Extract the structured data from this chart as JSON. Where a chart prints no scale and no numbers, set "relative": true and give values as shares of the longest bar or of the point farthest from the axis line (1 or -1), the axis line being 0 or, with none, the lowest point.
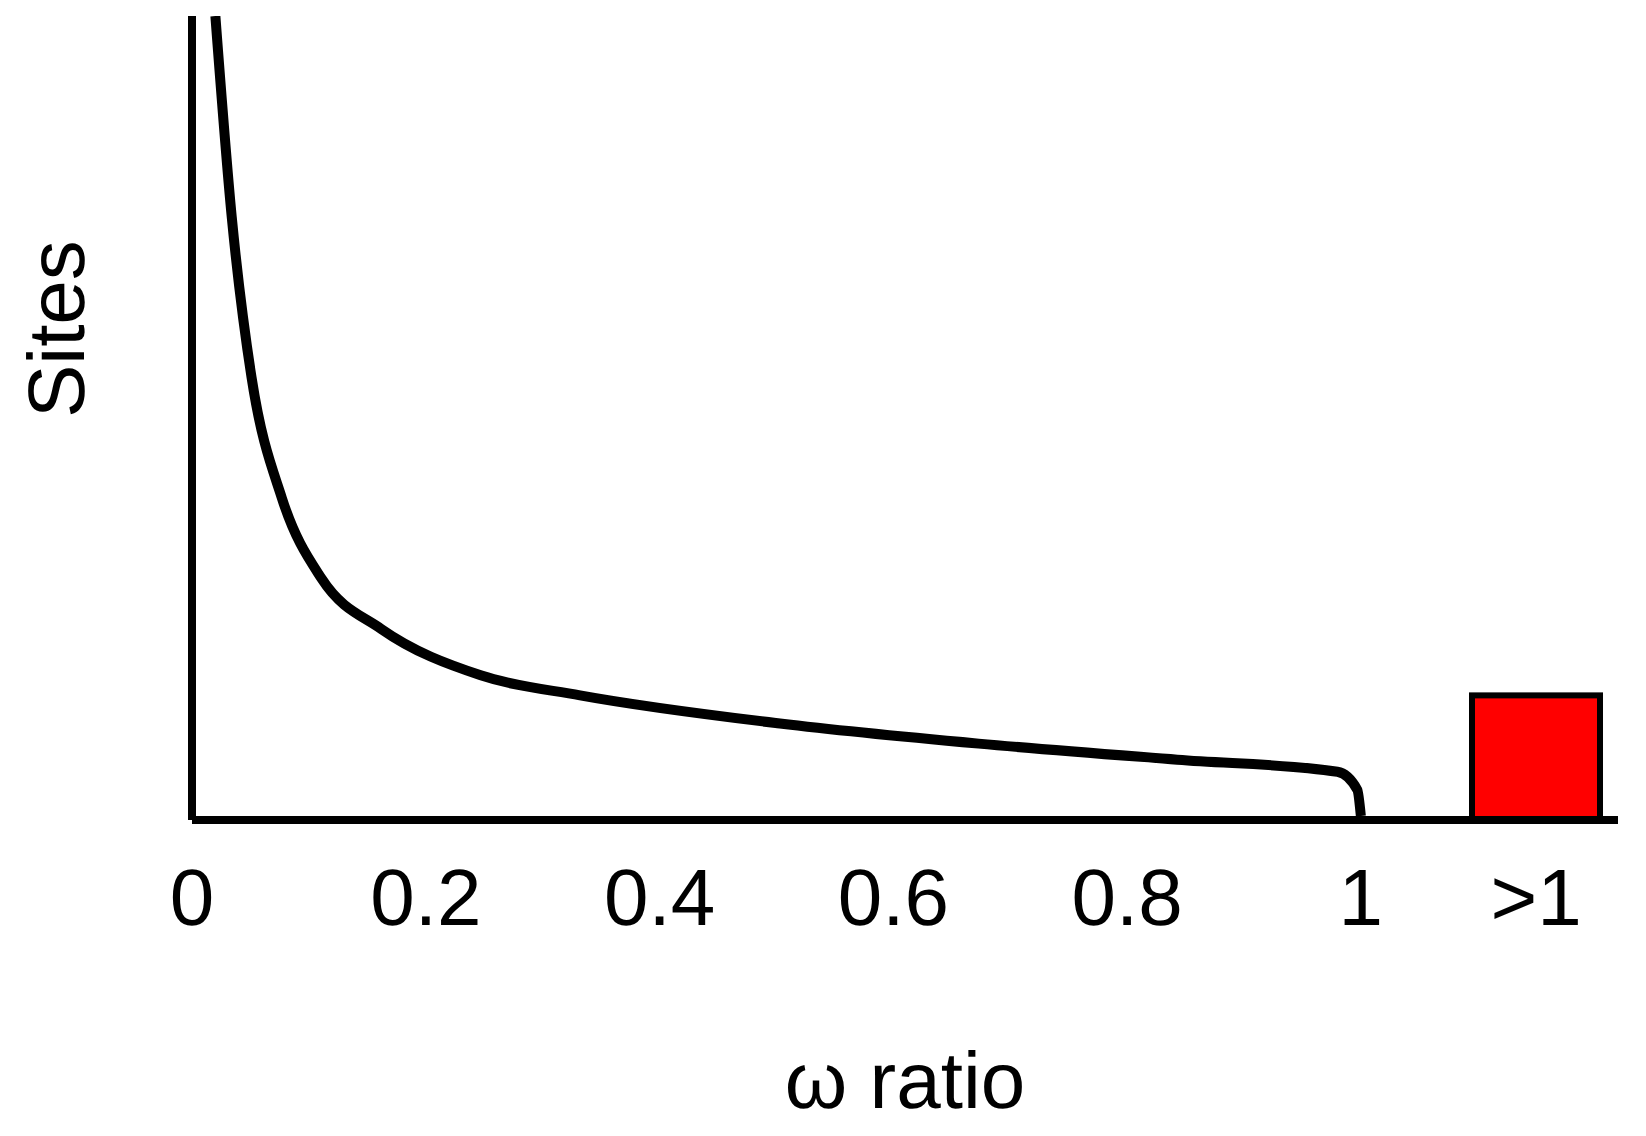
{
  "chart_data": {
    "type": "line",
    "xlabel": "ω ratio",
    "ylabel": "Sites",
    "relative": true,
    "xlim": [
      0,
      1.22
    ],
    "xticks": [
      0,
      0.2,
      0.4,
      0.6,
      0.8,
      1,
      {
        "value": 1.15,
        "label": ">1"
      }
    ],
    "tick_labels": "x",
    "grid": false,
    "marker": "none",
    "line_style": "solid",
    "series": [
      {
        "color": "#000000",
        "x": [
          0.02,
          0.034,
          0.051,
          0.077,
          0.111,
          0.162,
          0.247,
          0.332,
          0.503,
          0.673,
          0.843,
          0.98,
          0.997,
          1.0
        ],
        "values": [
          1.0,
          0.75,
          0.55,
          0.4,
          0.3,
          0.2375,
          0.18,
          0.155,
          0.12,
          0.095,
          0.075,
          0.06,
          0.0375,
          0.005
        ]
      },
      {
        "type": "bar",
        "color": "#ff0000",
        "x": [
          1.15
        ],
        "values": [
          0.155
        ]
      }
    ]
  }
}
